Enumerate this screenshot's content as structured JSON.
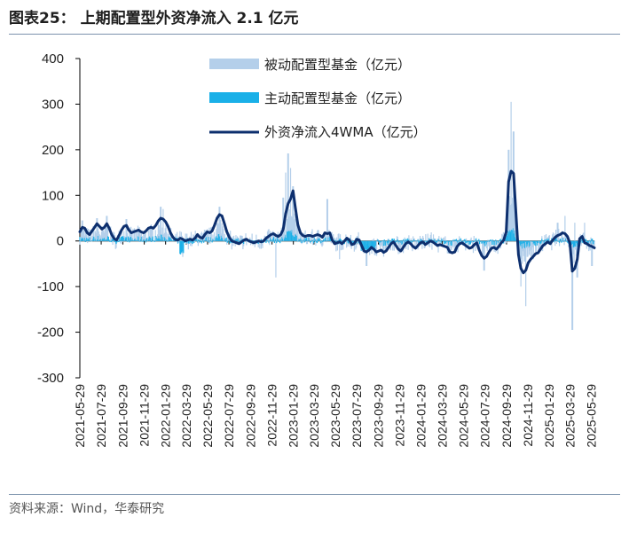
{
  "header": {
    "title": "图表25：  上期配置型外资净流入 2.1 亿元"
  },
  "footer": {
    "source": "资料来源：Wind，华泰研究"
  },
  "colors": {
    "passive": "#b4cfea",
    "active": "#1ab0e8",
    "wma": "#0d2f6e",
    "axis": "#000000"
  },
  "chart_data": {
    "type": "bar+line",
    "title": "上期配置型外资净流入 2.1 亿元",
    "xlabel": "",
    "ylabel": "",
    "ylim": [
      -300,
      400
    ],
    "yticks": [
      400,
      300,
      200,
      100,
      0,
      -100,
      -200,
      -300
    ],
    "legend": {
      "position": "top-right",
      "entries": [
        {
          "key": "passive",
          "label": "被动配置型基金（亿元）",
          "style": "bar"
        },
        {
          "key": "active",
          "label": "主动配置型基金（亿元）",
          "style": "bar"
        },
        {
          "key": "wma",
          "label": "外资净流入4WMA（亿元）",
          "style": "line"
        }
      ]
    },
    "x_range": [
      "2021-05-29",
      "2025-06-07"
    ],
    "xticks": [
      "2021-05-29",
      "2021-07-29",
      "2021-09-29",
      "2021-11-29",
      "2022-01-29",
      "2022-03-29",
      "2022-05-29",
      "2022-07-29",
      "2022-09-29",
      "2022-11-29",
      "2023-01-29",
      "2023-03-29",
      "2023-05-29",
      "2023-07-29",
      "2023-09-29",
      "2023-11-29",
      "2024-01-29",
      "2024-03-29",
      "2024-05-29",
      "2024-07-29",
      "2024-09-29",
      "2024-11-29",
      "2025-01-29",
      "2025-03-29",
      "2025-05-29"
    ],
    "wma_anchors": [
      [
        "2021-05-29",
        20
      ],
      [
        "2021-06-05",
        30
      ],
      [
        "2021-06-12",
        28
      ],
      [
        "2021-06-19",
        18
      ],
      [
        "2021-06-26",
        14
      ],
      [
        "2021-07-03",
        22
      ],
      [
        "2021-07-10",
        30
      ],
      [
        "2021-07-17",
        38
      ],
      [
        "2021-07-24",
        32
      ],
      [
        "2021-07-31",
        26
      ],
      [
        "2021-08-07",
        30
      ],
      [
        "2021-08-14",
        38
      ],
      [
        "2021-08-21",
        28
      ],
      [
        "2021-08-28",
        14
      ],
      [
        "2021-09-04",
        5
      ],
      [
        "2021-09-11",
        2
      ],
      [
        "2021-09-18",
        12
      ],
      [
        "2021-09-25",
        24
      ],
      [
        "2021-10-02",
        32
      ],
      [
        "2021-10-09",
        34
      ],
      [
        "2021-10-16",
        24
      ],
      [
        "2021-10-23",
        18
      ],
      [
        "2021-10-30",
        20
      ],
      [
        "2021-11-06",
        22
      ],
      [
        "2021-11-13",
        24
      ],
      [
        "2021-11-20",
        20
      ],
      [
        "2021-11-27",
        18
      ],
      [
        "2021-12-04",
        22
      ],
      [
        "2021-12-11",
        28
      ],
      [
        "2021-12-18",
        30
      ],
      [
        "2021-12-25",
        28
      ],
      [
        "2022-01-01",
        34
      ],
      [
        "2022-01-08",
        44
      ],
      [
        "2022-01-15",
        50
      ],
      [
        "2022-01-22",
        48
      ],
      [
        "2022-01-29",
        42
      ],
      [
        "2022-02-05",
        32
      ],
      [
        "2022-02-12",
        18
      ],
      [
        "2022-02-19",
        8
      ],
      [
        "2022-02-26",
        3
      ],
      [
        "2022-03-05",
        2
      ],
      [
        "2022-03-12",
        6
      ],
      [
        "2022-03-19",
        4
      ],
      [
        "2022-03-26",
        0
      ],
      [
        "2022-04-02",
        2
      ],
      [
        "2022-04-09",
        4
      ],
      [
        "2022-04-16",
        2
      ],
      [
        "2022-04-23",
        6
      ],
      [
        "2022-04-30",
        14
      ],
      [
        "2022-05-07",
        8
      ],
      [
        "2022-05-14",
        6
      ],
      [
        "2022-05-21",
        14
      ],
      [
        "2022-05-28",
        20
      ],
      [
        "2022-06-04",
        18
      ],
      [
        "2022-06-11",
        22
      ],
      [
        "2022-06-18",
        35
      ],
      [
        "2022-06-25",
        50
      ],
      [
        "2022-07-02",
        58
      ],
      [
        "2022-07-09",
        55
      ],
      [
        "2022-07-16",
        38
      ],
      [
        "2022-07-23",
        20
      ],
      [
        "2022-07-30",
        8
      ],
      [
        "2022-08-06",
        0
      ],
      [
        "2022-08-13",
        -2
      ],
      [
        "2022-08-20",
        -4
      ],
      [
        "2022-08-27",
        -6
      ],
      [
        "2022-09-03",
        -2
      ],
      [
        "2022-09-10",
        2
      ],
      [
        "2022-09-17",
        4
      ],
      [
        "2022-09-24",
        0
      ],
      [
        "2022-10-01",
        -2
      ],
      [
        "2022-10-08",
        -4
      ],
      [
        "2022-10-15",
        -2
      ],
      [
        "2022-10-22",
        0
      ],
      [
        "2022-10-29",
        -2
      ],
      [
        "2022-11-05",
        0
      ],
      [
        "2022-11-12",
        6
      ],
      [
        "2022-11-19",
        10
      ],
      [
        "2022-11-26",
        14
      ],
      [
        "2022-12-03",
        16
      ],
      [
        "2022-12-10",
        12
      ],
      [
        "2022-12-17",
        10
      ],
      [
        "2022-12-24",
        14
      ],
      [
        "2022-12-31",
        25
      ],
      [
        "2023-01-07",
        60
      ],
      [
        "2023-01-14",
        82
      ],
      [
        "2023-01-21",
        92
      ],
      [
        "2023-01-28",
        110
      ],
      [
        "2023-02-04",
        72
      ],
      [
        "2023-02-11",
        35
      ],
      [
        "2023-02-18",
        18
      ],
      [
        "2023-02-25",
        12
      ],
      [
        "2023-03-04",
        10
      ],
      [
        "2023-03-11",
        12
      ],
      [
        "2023-03-18",
        12
      ],
      [
        "2023-03-25",
        10
      ],
      [
        "2023-04-01",
        12
      ],
      [
        "2023-04-08",
        14
      ],
      [
        "2023-04-15",
        12
      ],
      [
        "2023-04-22",
        8
      ],
      [
        "2023-04-29",
        18
      ],
      [
        "2023-05-06",
        16
      ],
      [
        "2023-05-13",
        18
      ],
      [
        "2023-05-20",
        2
      ],
      [
        "2023-05-27",
        -6
      ],
      [
        "2023-06-03",
        -4
      ],
      [
        "2023-06-10",
        -2
      ],
      [
        "2023-06-17",
        -6
      ],
      [
        "2023-06-24",
        0
      ],
      [
        "2023-07-01",
        6
      ],
      [
        "2023-07-08",
        2
      ],
      [
        "2023-07-15",
        -8
      ],
      [
        "2023-07-22",
        -6
      ],
      [
        "2023-07-29",
        4
      ],
      [
        "2023-08-05",
        2
      ],
      [
        "2023-08-12",
        -10
      ],
      [
        "2023-08-19",
        -22
      ],
      [
        "2023-08-26",
        -24
      ],
      [
        "2023-09-02",
        -20
      ],
      [
        "2023-09-09",
        -14
      ],
      [
        "2023-09-16",
        -18
      ],
      [
        "2023-09-23",
        -24
      ],
      [
        "2023-09-30",
        -22
      ],
      [
        "2023-10-07",
        -20
      ],
      [
        "2023-10-14",
        -25
      ],
      [
        "2023-10-21",
        -22
      ],
      [
        "2023-10-28",
        -14
      ],
      [
        "2023-11-04",
        -6
      ],
      [
        "2023-11-11",
        -2
      ],
      [
        "2023-11-18",
        -10
      ],
      [
        "2023-11-25",
        -18
      ],
      [
        "2023-12-02",
        -22
      ],
      [
        "2023-12-09",
        -14
      ],
      [
        "2023-12-16",
        -6
      ],
      [
        "2023-12-23",
        -2
      ],
      [
        "2023-12-30",
        -6
      ],
      [
        "2024-01-06",
        -12
      ],
      [
        "2024-01-13",
        -16
      ],
      [
        "2024-01-20",
        -10
      ],
      [
        "2024-01-27",
        -4
      ],
      [
        "2024-02-03",
        -2
      ],
      [
        "2024-02-10",
        -8
      ],
      [
        "2024-02-17",
        -4
      ],
      [
        "2024-02-24",
        0
      ],
      [
        "2024-03-02",
        -2
      ],
      [
        "2024-03-09",
        -6
      ],
      [
        "2024-03-16",
        -10
      ],
      [
        "2024-03-23",
        -8
      ],
      [
        "2024-03-30",
        -10
      ],
      [
        "2024-04-06",
        -12
      ],
      [
        "2024-04-13",
        -14
      ],
      [
        "2024-04-20",
        -24
      ],
      [
        "2024-04-27",
        -26
      ],
      [
        "2024-05-04",
        -24
      ],
      [
        "2024-05-11",
        -12
      ],
      [
        "2024-05-18",
        -6
      ],
      [
        "2024-05-25",
        -4
      ],
      [
        "2024-06-01",
        -8
      ],
      [
        "2024-06-08",
        -12
      ],
      [
        "2024-06-15",
        -16
      ],
      [
        "2024-06-22",
        -14
      ],
      [
        "2024-06-29",
        -8
      ],
      [
        "2024-07-06",
        -4
      ],
      [
        "2024-07-13",
        -20
      ],
      [
        "2024-07-20",
        -32
      ],
      [
        "2024-07-27",
        -38
      ],
      [
        "2024-08-03",
        -34
      ],
      [
        "2024-08-10",
        -24
      ],
      [
        "2024-08-17",
        -16
      ],
      [
        "2024-08-24",
        -14
      ],
      [
        "2024-08-31",
        -18
      ],
      [
        "2024-09-07",
        -12
      ],
      [
        "2024-09-14",
        -4
      ],
      [
        "2024-09-21",
        2
      ],
      [
        "2024-09-28",
        20
      ],
      [
        "2024-10-05",
        130
      ],
      [
        "2024-10-12",
        153
      ],
      [
        "2024-10-19",
        148
      ],
      [
        "2024-10-26",
        60
      ],
      [
        "2024-11-02",
        -30
      ],
      [
        "2024-11-09",
        -60
      ],
      [
        "2024-11-16",
        -70
      ],
      [
        "2024-11-23",
        -64
      ],
      [
        "2024-11-30",
        -48
      ],
      [
        "2024-12-07",
        -40
      ],
      [
        "2024-12-14",
        -34
      ],
      [
        "2024-12-21",
        -28
      ],
      [
        "2024-12-28",
        -26
      ],
      [
        "2025-01-04",
        -18
      ],
      [
        "2025-01-11",
        -10
      ],
      [
        "2025-01-18",
        -6
      ],
      [
        "2025-01-25",
        -2
      ],
      [
        "2025-02-01",
        -6
      ],
      [
        "2025-02-08",
        2
      ],
      [
        "2025-02-15",
        8
      ],
      [
        "2025-02-22",
        12
      ],
      [
        "2025-03-01",
        14
      ],
      [
        "2025-03-08",
        18
      ],
      [
        "2025-03-15",
        16
      ],
      [
        "2025-03-22",
        10
      ],
      [
        "2025-03-29",
        -5
      ],
      [
        "2025-04-05",
        -66
      ],
      [
        "2025-04-12",
        -60
      ],
      [
        "2025-04-19",
        -40
      ],
      [
        "2025-04-26",
        5
      ],
      [
        "2025-05-03",
        10
      ],
      [
        "2025-05-10",
        -4
      ],
      [
        "2025-05-17",
        -6
      ],
      [
        "2025-05-24",
        -10
      ],
      [
        "2025-05-31",
        -12
      ],
      [
        "2025-06-07",
        -15
      ]
    ],
    "passive_spikes": [
      [
        "2021-06-05",
        45
      ],
      [
        "2021-07-17",
        50
      ],
      [
        "2021-08-14",
        55
      ],
      [
        "2021-10-09",
        48
      ],
      [
        "2022-01-15",
        75
      ],
      [
        "2022-01-22",
        70
      ],
      [
        "2022-07-02",
        75
      ],
      [
        "2022-12-31",
        95
      ],
      [
        "2023-01-07",
        150
      ],
      [
        "2023-01-14",
        192
      ],
      [
        "2023-01-21",
        160
      ],
      [
        "2023-01-28",
        120
      ],
      [
        "2023-05-06",
        92
      ],
      [
        "2024-10-05",
        200
      ],
      [
        "2024-10-12",
        305
      ],
      [
        "2024-10-19",
        240
      ],
      [
        "2025-02-22",
        40
      ],
      [
        "2025-03-15",
        55
      ],
      [
        "2025-04-12",
        40
      ],
      [
        "2025-05-10",
        40
      ]
    ],
    "passive_dips": [
      [
        "2022-12-10",
        -80
      ],
      [
        "2023-08-26",
        -55
      ],
      [
        "2024-07-27",
        -65
      ],
      [
        "2024-11-23",
        -143
      ],
      [
        "2024-11-09",
        -100
      ],
      [
        "2025-04-05",
        -195
      ],
      [
        "2025-04-19",
        -80
      ],
      [
        "2025-05-31",
        -55
      ],
      [
        "2023-06-10",
        -40
      ],
      [
        "2022-03-19",
        -35
      ]
    ],
    "active_approx": "small bars mostly within ±25, largest negative about -35 in 2022-03, largest positive about 25 in 2023-01"
  }
}
